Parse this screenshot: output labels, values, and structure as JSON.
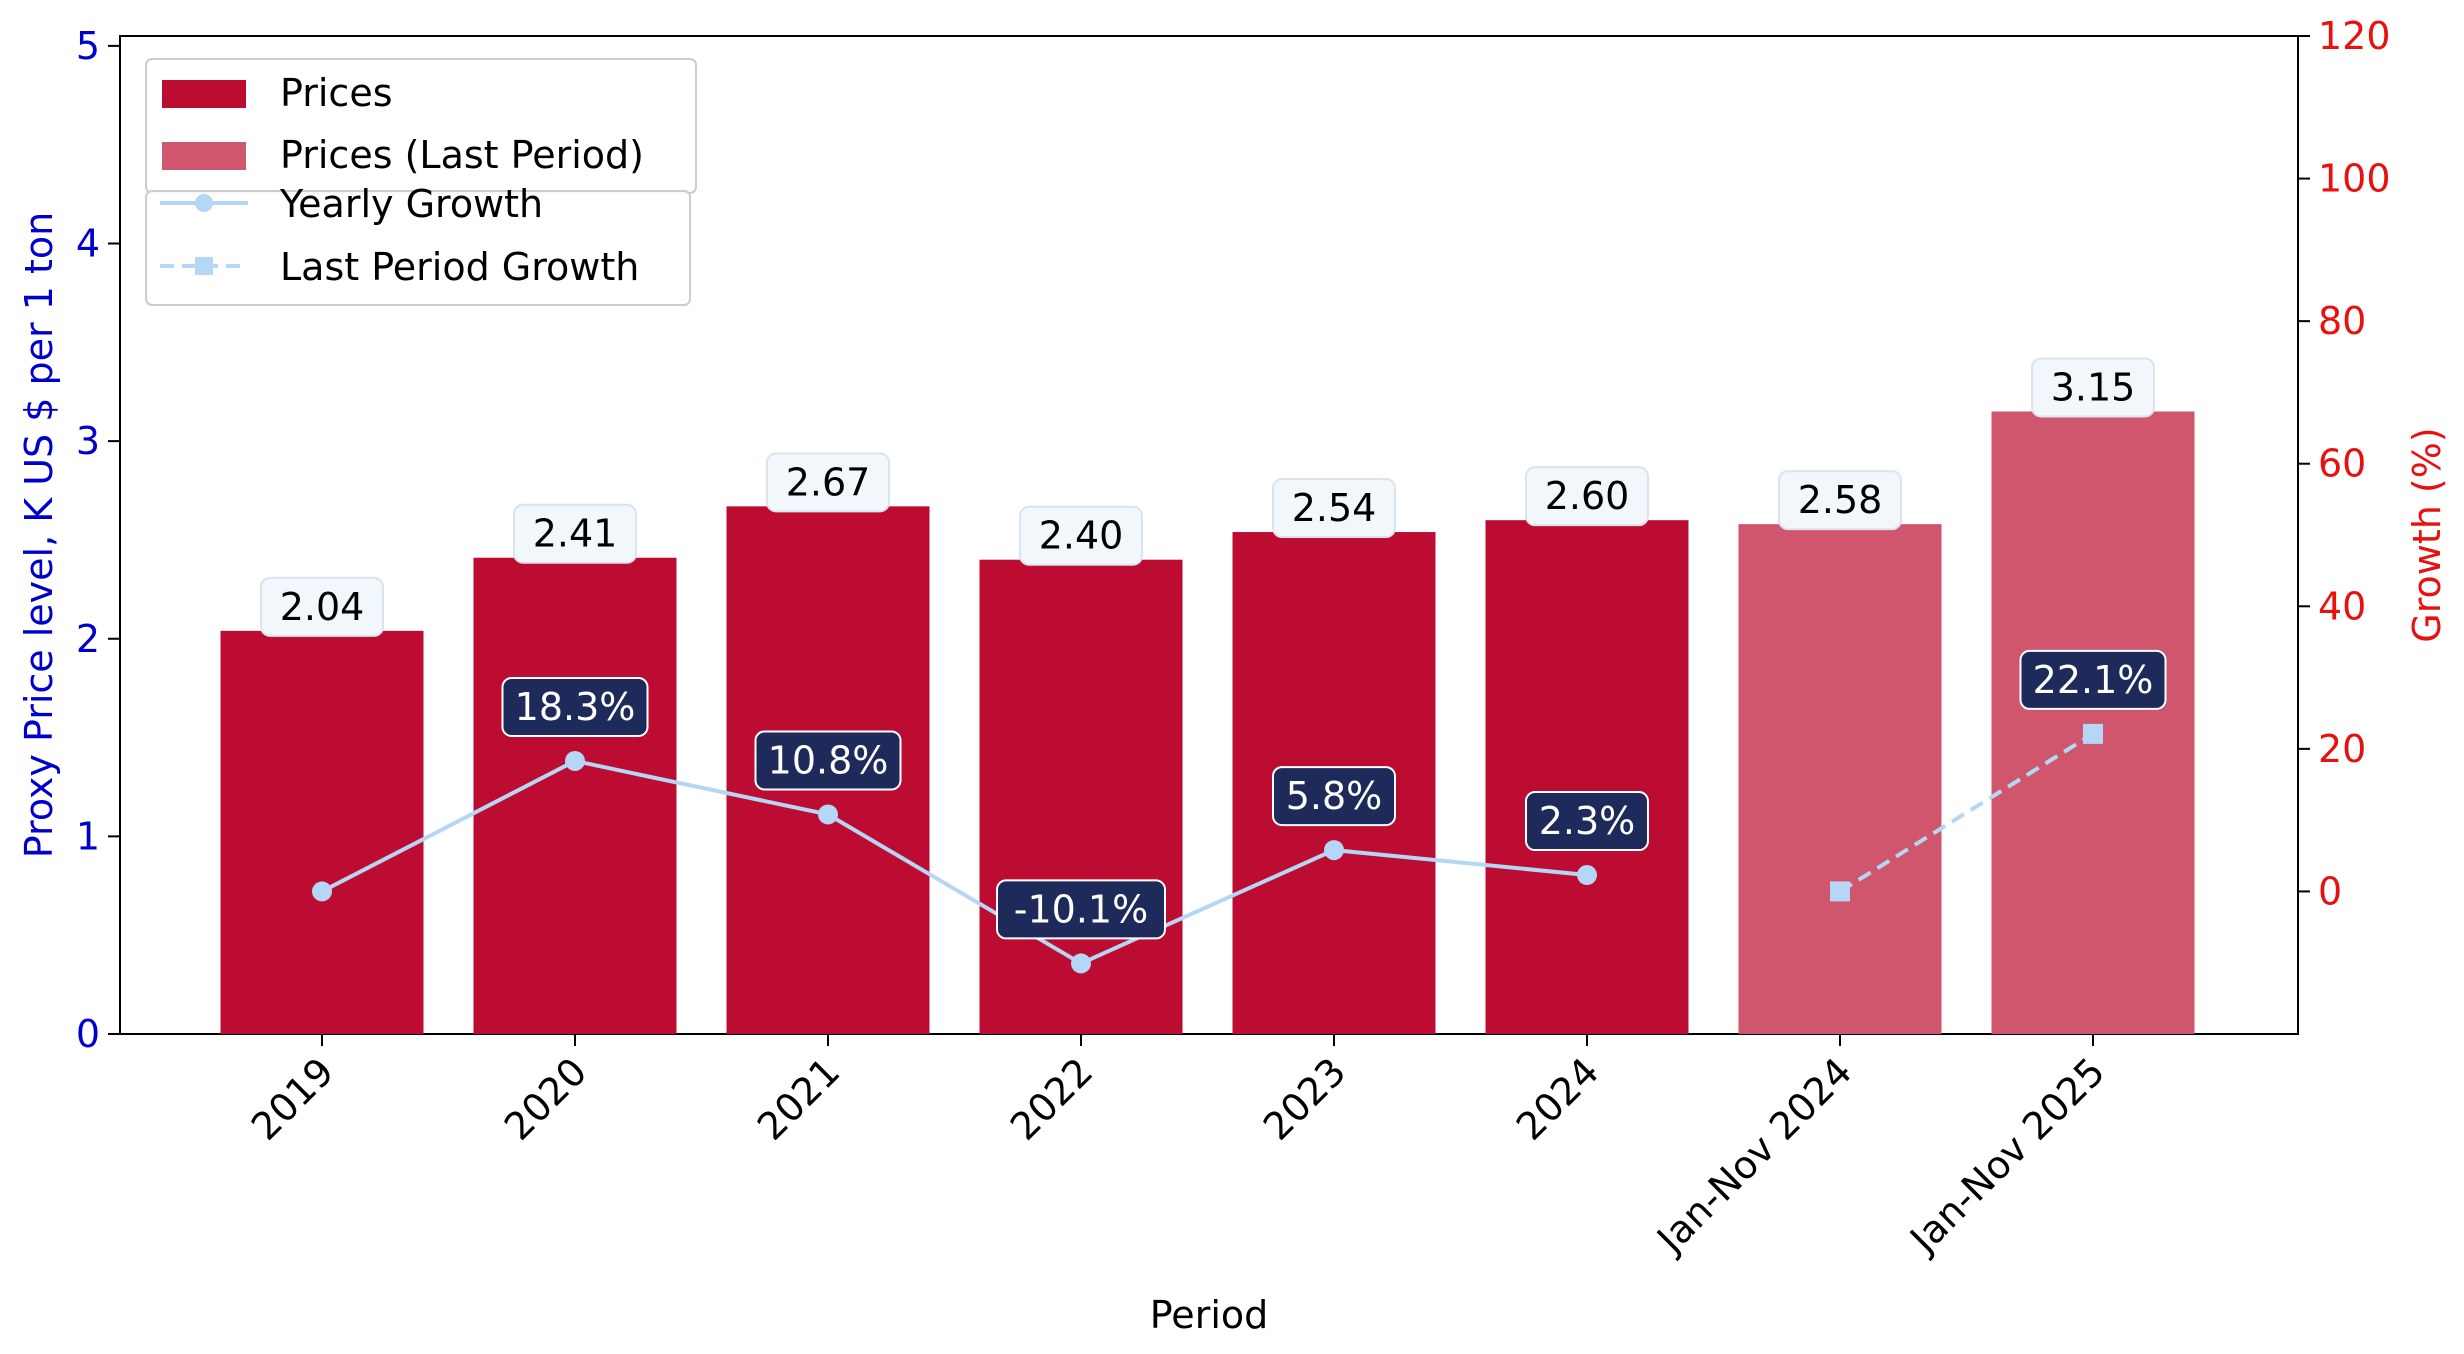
{
  "chart_data": {
    "type": "bar",
    "xlabel": "Period",
    "ylabel_left": "Proxy Price level, K US $ per 1 ton",
    "ylabel_right": "Growth (%)",
    "categories": [
      "2019",
      "2020",
      "2021",
      "2022",
      "2023",
      "2024",
      "Jan-Nov 2024",
      "Jan-Nov 2025"
    ],
    "left_axis": {
      "min": 0,
      "max": 5.05,
      "ticks": [
        0,
        1,
        2,
        3,
        4,
        5
      ]
    },
    "right_axis": {
      "min": -20,
      "max": 120,
      "ticks": [
        0,
        20,
        40,
        60,
        80,
        100,
        120
      ]
    },
    "grid": false,
    "legend_placement": "top-left",
    "series": [
      {
        "name": "Prices",
        "kind": "bar",
        "color": "#bc0c31",
        "values": [
          2.04,
          2.41,
          2.67,
          2.4,
          2.54,
          2.6,
          null,
          null
        ],
        "labels": [
          "2.04",
          "2.41",
          "2.67",
          "2.40",
          "2.54",
          "2.60",
          "",
          ""
        ]
      },
      {
        "name": "Prices (Last Period)",
        "kind": "bar",
        "color": "#d0566e",
        "values": [
          null,
          null,
          null,
          null,
          null,
          null,
          2.58,
          3.15
        ],
        "labels": [
          "",
          "",
          "",
          "",
          "",
          "",
          "2.58",
          "3.15"
        ]
      },
      {
        "name": "Yearly Growth",
        "kind": "line",
        "axis": "right",
        "color": "#b5d6f5",
        "marker": "circle",
        "values": [
          0,
          18.3,
          10.8,
          -10.1,
          5.8,
          2.3,
          null,
          null
        ],
        "labels": [
          "",
          "18.3%",
          "10.8%",
          "-10.1%",
          "5.8%",
          "2.3%",
          "",
          ""
        ]
      },
      {
        "name": "Last Period Growth",
        "kind": "line",
        "axis": "right",
        "color": "#b5d6f5",
        "marker": "square",
        "dashed": true,
        "values": [
          null,
          null,
          null,
          null,
          null,
          null,
          0,
          22.1
        ],
        "labels": [
          "",
          "",
          "",
          "",
          "",
          "",
          "",
          "22.1%"
        ]
      }
    ],
    "colors": {
      "left_axis": "#0000cc",
      "right_axis": "#e8110f",
      "price_label_bg": "#f2f7fc",
      "growth_label_bg": "#1e2a5a"
    }
  }
}
